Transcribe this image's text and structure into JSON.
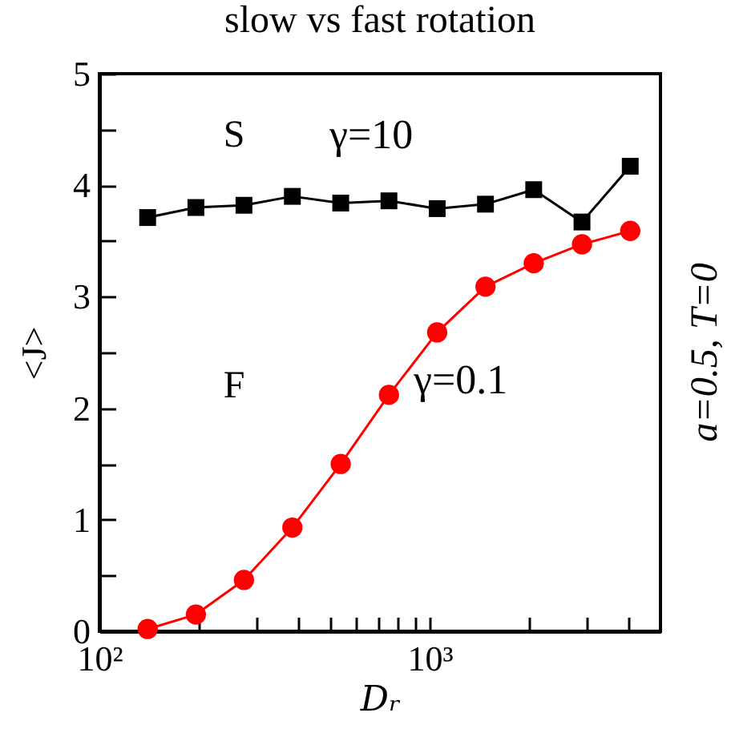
{
  "chart_data": {
    "type": "line",
    "title": "slow vs fast rotation",
    "xlabel": "Dᵣ",
    "ylabel": "<J>",
    "x": [
      140,
      196,
      274,
      384,
      538,
      753,
      1054,
      1476,
      2066,
      2893,
      4050
    ],
    "series": [
      {
        "name": "γ=10",
        "color": "#000000",
        "marker": "square",
        "values": [
          3.71,
          3.8,
          3.82,
          3.9,
          3.84,
          3.86,
          3.79,
          3.83,
          3.96,
          3.67,
          4.17
        ]
      },
      {
        "name": "γ=0.1",
        "color": "#ff0000",
        "marker": "circle",
        "values": [
          0.02,
          0.15,
          0.46,
          0.93,
          1.5,
          2.12,
          2.68,
          3.09,
          3.3,
          3.47,
          3.59
        ]
      }
    ],
    "log": "x",
    "xlim": [
      100,
      5000
    ],
    "xticks": [
      {
        "value": 100,
        "label": "10²"
      },
      {
        "value": 200,
        "label": null
      },
      {
        "value": 300,
        "label": null
      },
      {
        "value": 400,
        "label": null
      },
      {
        "value": 500,
        "label": null
      },
      {
        "value": 600,
        "label": null
      },
      {
        "value": 700,
        "label": null
      },
      {
        "value": 800,
        "label": null
      },
      {
        "value": 900,
        "label": null
      },
      {
        "value": 1000,
        "label": "10³"
      },
      {
        "value": 2000,
        "label": null
      },
      {
        "value": 3000,
        "label": null
      },
      {
        "value": 4000,
        "label": null
      }
    ],
    "ylim": [
      0,
      5
    ],
    "yticks": [
      0,
      {
        "value": 0.5,
        "label": null
      },
      1,
      {
        "value": 1.5,
        "label": null
      },
      2,
      {
        "value": 2.5,
        "label": null
      },
      3,
      {
        "value": 3.5,
        "label": null
      },
      4,
      {
        "value": 4.5,
        "label": null
      },
      5
    ],
    "annotations": [
      "S",
      "F",
      "a=0.5, T=0"
    ],
    "grid": false,
    "legend": "top"
  }
}
